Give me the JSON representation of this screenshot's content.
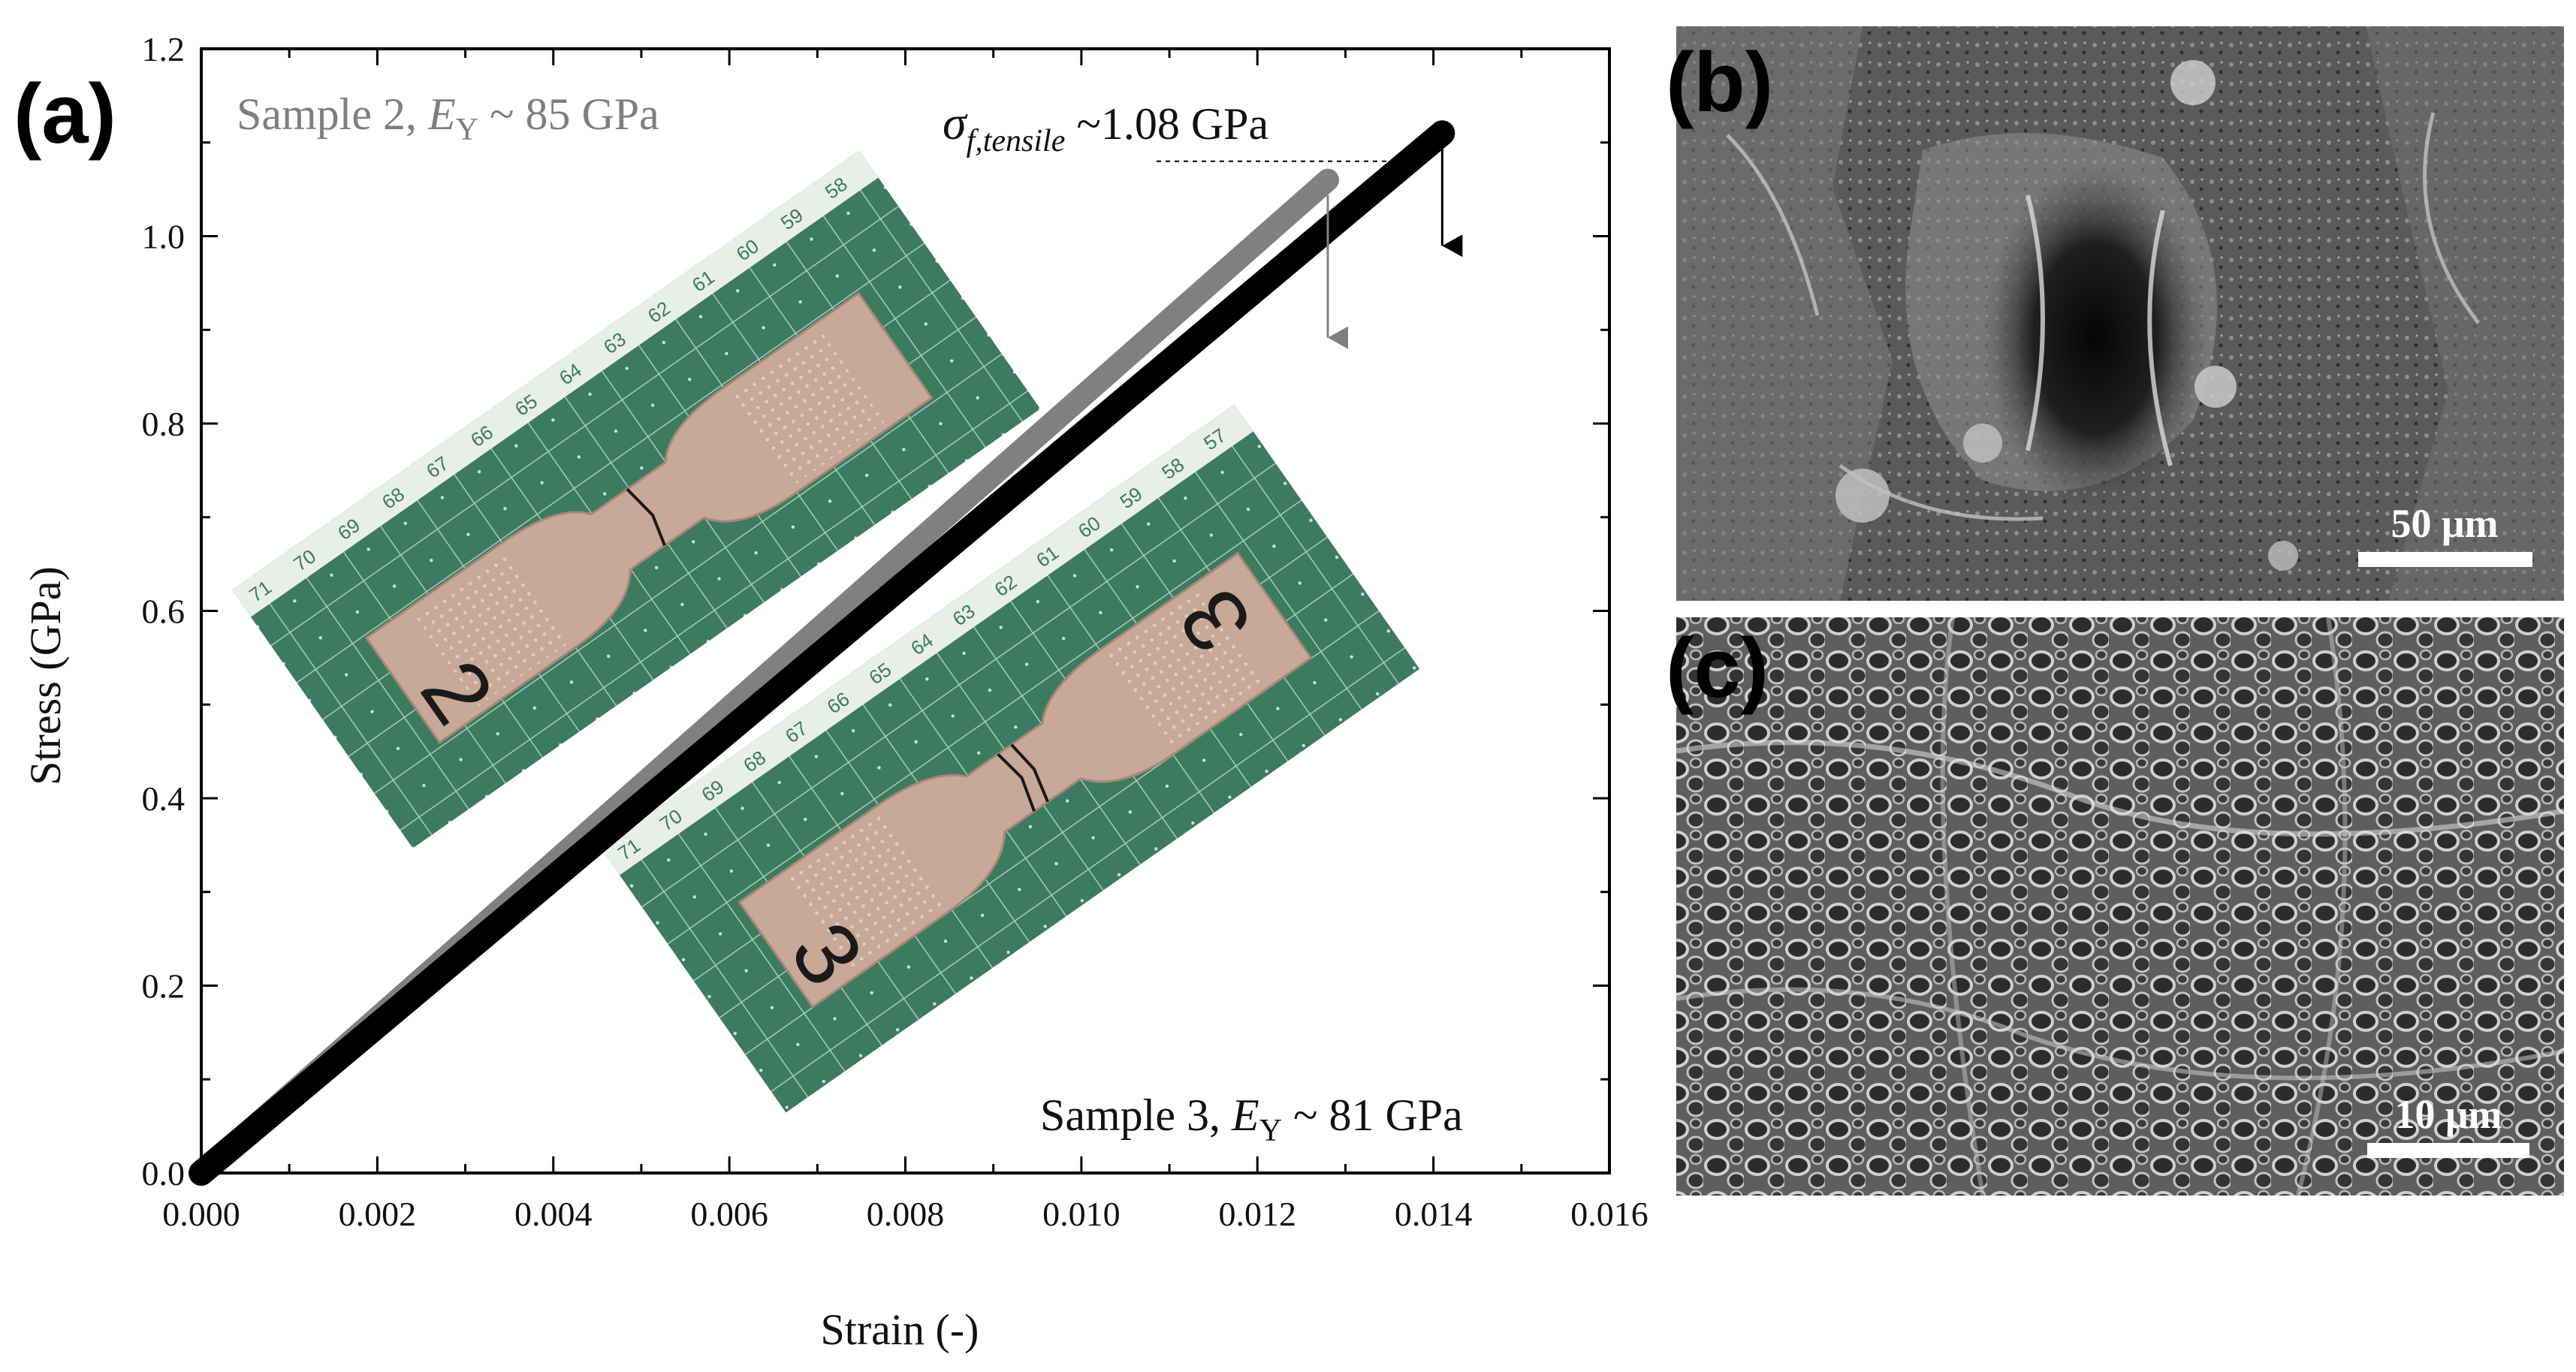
{
  "panels": {
    "a": "(a)",
    "b": "(b)",
    "c": "(c)"
  },
  "chart_data": {
    "type": "line",
    "xlabel": "Strain (-)",
    "ylabel": "Stress (GPa)",
    "xlim": [
      0,
      0.016
    ],
    "ylim": [
      0,
      1.2
    ],
    "x_ticks": [
      "0.000",
      "0.002",
      "0.004",
      "0.006",
      "0.008",
      "0.010",
      "0.012",
      "0.014",
      "0.016"
    ],
    "y_ticks": [
      "0.0",
      "0.2",
      "0.4",
      "0.6",
      "0.8",
      "1.0",
      "1.2"
    ],
    "grid": false,
    "series": [
      {
        "label_prefix": "Sample 2, ",
        "modulus_symbol": "E",
        "modulus_sub": "Y",
        "label_suffix": " ~ 85 GPa",
        "color": "#808080",
        "x": [
          0,
          0.0128
        ],
        "y": [
          0,
          1.06
        ]
      },
      {
        "label_prefix": "Sample 3, ",
        "modulus_symbol": "E",
        "modulus_sub": "Y",
        "label_suffix": " ~ 81 GPa",
        "color": "#000000",
        "x": [
          0,
          0.0141
        ],
        "y": [
          0,
          1.11
        ]
      }
    ],
    "annotation": {
      "symbol": "σ",
      "subscript": "f,tensile",
      "text": " ~1.08 GPa",
      "y": 1.08
    }
  },
  "insets": {
    "specimen_2": {
      "ruler_numbers": [
        "71",
        "70",
        "69",
        "68",
        "67",
        "66",
        "65",
        "64",
        "63",
        "62",
        "61",
        "60",
        "59",
        "58"
      ],
      "mark": "2"
    },
    "specimen_3": {
      "ruler_numbers": [
        "71",
        "70",
        "69",
        "68",
        "67",
        "66",
        "65",
        "64",
        "63",
        "62",
        "61",
        "60",
        "59",
        "58",
        "57"
      ],
      "mark": "3"
    }
  },
  "micrographs": {
    "b": {
      "scale_bar": "50 μm"
    },
    "c": {
      "scale_bar": "10 μm"
    }
  },
  "colors": {
    "cutting_mat": "#3d7a62",
    "specimen": "#c8a896",
    "sem_dark": "#3b3b3b",
    "sem_light": "#bdbdbd"
  }
}
